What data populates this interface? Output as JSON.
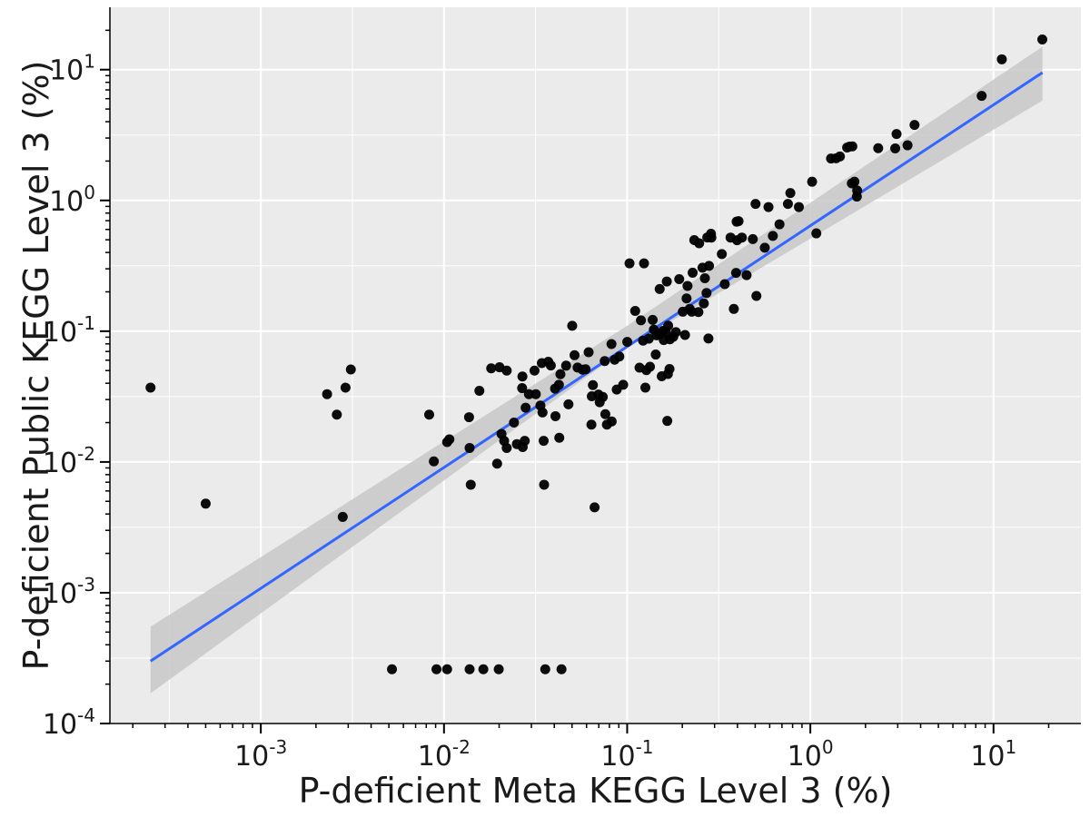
{
  "chart_data": {
    "type": "scatter",
    "title": "",
    "xlabel": "P-deficient Meta KEGG Level 3 (%)",
    "ylabel": "P-deficient Public KEGG Level 3 (%)",
    "xscale": "log",
    "yscale": "log",
    "xlim": [
      0.00015,
      30
    ],
    "ylim": [
      0.0001,
      30
    ],
    "x_ticks": [
      {
        "base": "10",
        "exp": "-3",
        "value": 0.001
      },
      {
        "base": "10",
        "exp": "-2",
        "value": 0.01
      },
      {
        "base": "10",
        "exp": "-1",
        "value": 0.1
      },
      {
        "base": "10",
        "exp": "0",
        "value": 1
      },
      {
        "base": "10",
        "exp": "1",
        "value": 10
      }
    ],
    "y_ticks": [
      {
        "base": "10",
        "exp": "-4",
        "value": 0.0001
      },
      {
        "base": "10",
        "exp": "-3",
        "value": 0.001
      },
      {
        "base": "10",
        "exp": "-2",
        "value": 0.01
      },
      {
        "base": "10",
        "exp": "-1",
        "value": 0.1
      },
      {
        "base": "10",
        "exp": "0",
        "value": 1
      },
      {
        "base": "10",
        "exp": "1",
        "value": 10
      }
    ],
    "grid": true,
    "legend": "none",
    "colors": {
      "panel": "#ebebeb",
      "grid": "#ffffff",
      "points": "#000000",
      "fit_line": "#3366ff",
      "confidence_band": "#c8c8c8"
    },
    "fit_line": {
      "x": [
        0.00025,
        18.5
      ],
      "y": [
        0.0003,
        9.5
      ]
    },
    "confidence_band": {
      "x": [
        0.00025,
        0.1,
        18.5
      ],
      "lower": [
        0.00017,
        0.075,
        5.8
      ],
      "upper": [
        0.00055,
        0.11,
        15
      ]
    },
    "series": [
      {
        "points": [
          [
            0.00025,
            0.037
          ],
          [
            0.0005,
            0.0048
          ],
          [
            0.0023,
            0.033
          ],
          [
            0.0026,
            0.023
          ],
          [
            0.0028,
            0.0038
          ],
          [
            0.0029,
            0.037
          ],
          [
            0.0031,
            0.051
          ],
          [
            0.0083,
            0.023
          ],
          [
            0.0088,
            0.0101
          ],
          [
            0.0104,
            0.0142
          ],
          [
            0.0107,
            0.0149
          ],
          [
            0.0137,
            0.022
          ],
          [
            0.0138,
            0.0128
          ],
          [
            0.014,
            0.0067
          ],
          [
            0.0156,
            0.035
          ],
          [
            0.0181,
            0.052
          ],
          [
            0.0195,
            0.0097
          ],
          [
            0.0201,
            0.053
          ],
          [
            0.0206,
            0.0164
          ],
          [
            0.0213,
            0.0145
          ],
          [
            0.022,
            0.0128
          ],
          [
            0.022,
            0.05
          ],
          [
            0.0241,
            0.02
          ],
          [
            0.025,
            0.0137
          ],
          [
            0.0267,
            0.0367
          ],
          [
            0.0268,
            0.045
          ],
          [
            0.0269,
            0.013
          ],
          [
            0.0276,
            0.0145
          ],
          [
            0.0279,
            0.026
          ],
          [
            0.0291,
            0.033
          ],
          [
            0.0312,
            0.05
          ],
          [
            0.0317,
            0.033
          ],
          [
            0.0336,
            0.027
          ],
          [
            0.0342,
            0.057
          ],
          [
            0.0345,
            0.0239
          ],
          [
            0.035,
            0.0145
          ],
          [
            0.0352,
            0.0067
          ],
          [
            0.0371,
            0.0584
          ],
          [
            0.0383,
            0.0547
          ],
          [
            0.0404,
            0.0364
          ],
          [
            0.0406,
            0.0224
          ],
          [
            0.0424,
            0.0389
          ],
          [
            0.0426,
            0.0153
          ],
          [
            0.0432,
            0.0469
          ],
          [
            0.0464,
            0.0545
          ],
          [
            0.0478,
            0.0276
          ],
          [
            0.0501,
            0.11
          ],
          [
            0.0516,
            0.0655
          ],
          [
            0.0536,
            0.0527
          ],
          [
            0.0571,
            0.0508
          ],
          [
            0.0593,
            0.0512
          ],
          [
            0.0616,
            0.0691
          ],
          [
            0.0638,
            0.0193
          ],
          [
            0.0641,
            0.0318
          ],
          [
            0.065,
            0.0387
          ],
          [
            0.0664,
            0.0045
          ],
          [
            0.0697,
            0.0328
          ],
          [
            0.0708,
            0.0286
          ],
          [
            0.0736,
            0.0314
          ],
          [
            0.0754,
            0.0591
          ],
          [
            0.076,
            0.0232
          ],
          [
            0.0775,
            0.0193
          ],
          [
            0.0821,
            0.0798
          ],
          [
            0.0823,
            0.0204
          ],
          [
            0.0854,
            0.0605
          ],
          [
            0.0877,
            0.0358
          ],
          [
            0.0906,
            0.064
          ],
          [
            0.0951,
            0.0389
          ],
          [
            0.1001,
            0.0828
          ],
          [
            0.103,
            0.33
          ],
          [
            0.1106,
            0.143
          ],
          [
            0.1168,
            0.0526
          ],
          [
            0.1189,
            0.121
          ],
          [
            0.1221,
            0.0847
          ],
          [
            0.1236,
            0.33
          ],
          [
            0.1257,
            0.037
          ],
          [
            0.1273,
            0.0504
          ],
          [
            0.1313,
            0.0877
          ],
          [
            0.1332,
            0.0535
          ],
          [
            0.1378,
            0.122
          ],
          [
            0.1398,
            0.1027
          ],
          [
            0.1432,
            0.0663
          ],
          [
            0.1448,
            0.093
          ],
          [
            0.1505,
            0.21
          ],
          [
            0.1515,
            0.0952
          ],
          [
            0.1544,
            0.0452
          ],
          [
            0.1569,
            0.1005
          ],
          [
            0.1584,
            0.0855
          ],
          [
            0.1624,
            0.0991
          ],
          [
            0.1646,
            0.24
          ],
          [
            0.1656,
            0.0206
          ],
          [
            0.1668,
            0.0471
          ],
          [
            0.1674,
            0.1103
          ],
          [
            0.1703,
            0.0514
          ],
          [
            0.1712,
            0.0868
          ],
          [
            0.1786,
            0.0907
          ],
          [
            0.1845,
            0.0984
          ],
          [
            0.1924,
            0.25
          ],
          [
            0.2013,
            0.141
          ],
          [
            0.2069,
            0.0935
          ],
          [
            0.211,
            0.178
          ],
          [
            0.2135,
            0.222
          ],
          [
            0.2195,
            0.148
          ],
          [
            0.2254,
            0.141
          ],
          [
            0.2277,
            0.28
          ],
          [
            0.2325,
            0.497
          ],
          [
            0.2449,
            0.14
          ],
          [
            0.2472,
            0.47
          ],
          [
            0.2578,
            0.306
          ],
          [
            0.2621,
            0.163
          ],
          [
            0.2656,
            0.254
          ],
          [
            0.2712,
            0.196
          ],
          [
            0.2737,
            0.521
          ],
          [
            0.2777,
            0.088
          ],
          [
            0.2798,
            0.316
          ],
          [
            0.2868,
            0.556
          ],
          [
            0.2881,
            0.52
          ],
          [
            0.3286,
            0.389
          ],
          [
            0.341,
            0.229
          ],
          [
            0.3668,
            0.52
          ],
          [
            0.3822,
            0.148
          ],
          [
            0.3932,
            0.279
          ],
          [
            0.3958,
            0.688
          ],
          [
            0.3981,
            0.496
          ],
          [
            0.4056,
            0.694
          ],
          [
            0.4229,
            0.52
          ],
          [
            0.4487,
            0.268
          ],
          [
            0.4852,
            0.506
          ],
          [
            0.5022,
            0.94
          ],
          [
            0.5076,
            0.186
          ],
          [
            0.5641,
            0.435
          ],
          [
            0.5908,
            0.89
          ],
          [
            0.6241,
            0.535
          ],
          [
            0.6786,
            0.657
          ],
          [
            0.7543,
            0.94
          ],
          [
            0.7778,
            1.14
          ],
          [
            0.8659,
            0.89
          ],
          [
            1.0221,
            1.39
          ],
          [
            1.0781,
            0.56
          ],
          [
            1.2969,
            2.09
          ],
          [
            1.3832,
            2.1
          ],
          [
            1.4497,
            2.17
          ],
          [
            1.5875,
            2.54
          ],
          [
            1.6361,
            2.58
          ],
          [
            1.6844,
            1.35
          ],
          [
            1.6959,
            2.59
          ],
          [
            1.7406,
            1.39
          ],
          [
            1.7946,
            1.07
          ],
          [
            1.8008,
            1.19
          ],
          [
            2.3465,
            2.51
          ],
          [
            2.9057,
            2.5
          ],
          [
            2.9554,
            3.22
          ],
          [
            3.3929,
            2.64
          ],
          [
            3.7045,
            3.78
          ],
          [
            8.6158,
            6.3
          ],
          [
            11.1003,
            12.0
          ],
          [
            18.4655,
            17.0
          ],
          [
            0.0052,
            0.00026
          ],
          [
            0.0091,
            0.00026
          ],
          [
            0.0104,
            0.00026
          ],
          [
            0.0138,
            0.00026
          ],
          [
            0.0164,
            0.00026
          ],
          [
            0.0199,
            0.00026
          ],
          [
            0.0357,
            0.00026
          ],
          [
            0.0438,
            0.00026
          ]
        ]
      }
    ]
  }
}
